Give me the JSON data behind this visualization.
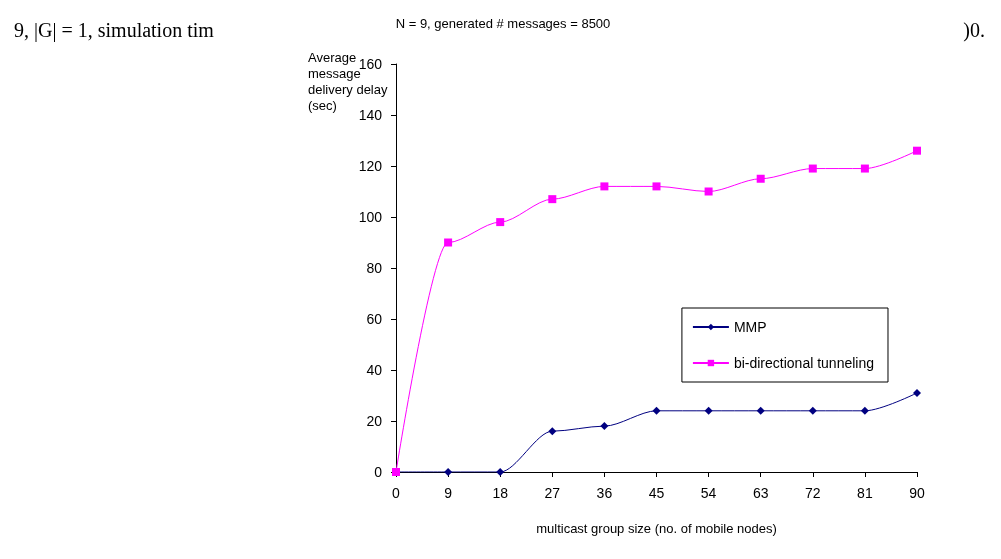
{
  "chart_data": {
    "type": "line",
    "title": "N = 9, generated # messages = 8500",
    "xlabel": "multicast group size (no. of mobile nodes)",
    "ylabel": "Average message delivery delay (sec)",
    "annotations": [
      "9, |G| = 1, simulation tim",
      ")0."
    ],
    "x": [
      0,
      9,
      18,
      27,
      36,
      45,
      54,
      63,
      72,
      81,
      90
    ],
    "series": [
      {
        "name": "MMP",
        "color": "#000080",
        "marker": "diamond",
        "values": [
          0,
          0,
          0,
          16,
          18,
          24,
          24,
          24,
          24,
          24,
          31
        ]
      },
      {
        "name": "bi-directional tunneling",
        "color": "#ff00ff",
        "marker": "square",
        "values": [
          0,
          90,
          98,
          107,
          112,
          112,
          110,
          115,
          119,
          119,
          126
        ]
      }
    ],
    "xlim": [
      0,
      90
    ],
    "xticks": [
      0,
      9,
      18,
      27,
      36,
      45,
      54,
      63,
      72,
      81,
      90
    ],
    "ylim": [
      0,
      160
    ],
    "yticks": [
      0,
      20,
      40,
      60,
      80,
      100,
      120,
      140,
      160
    ],
    "grid": false,
    "legend": "right"
  }
}
